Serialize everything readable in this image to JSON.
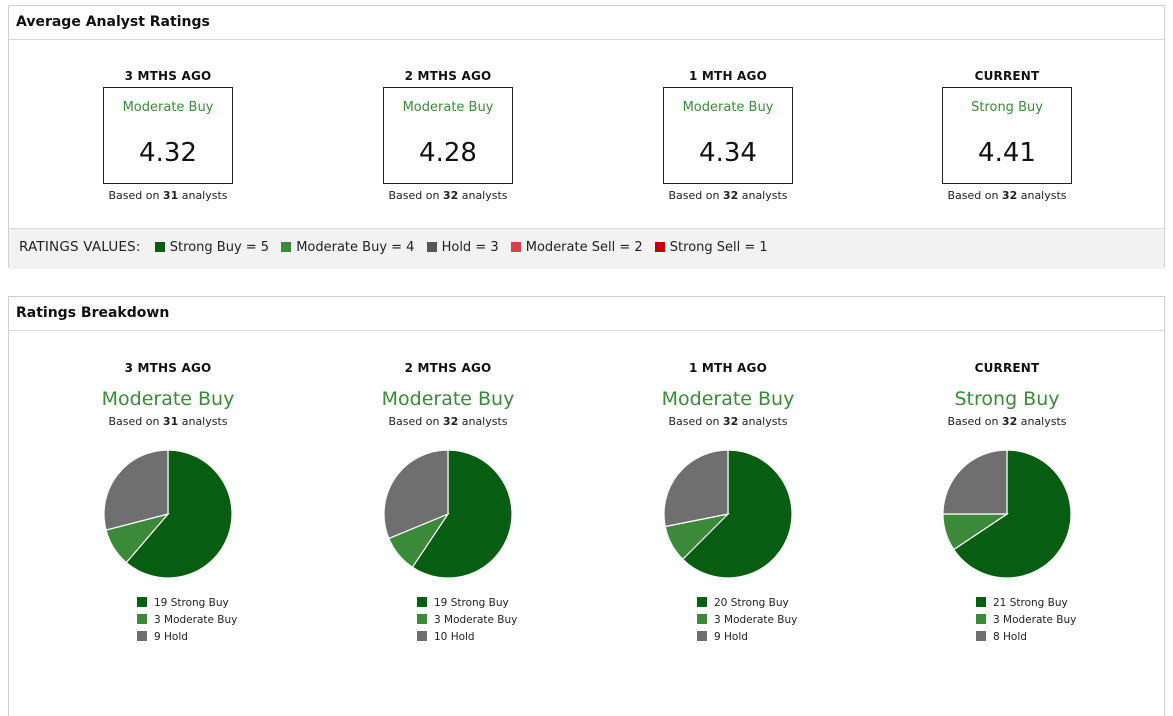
{
  "colors": {
    "strong_buy": "#075e12",
    "moderate_buy": "#3a8a3a",
    "hold": "#6f6f6f",
    "moderate_sell": "#d34545",
    "strong_sell": "#c00000"
  },
  "avg_panel": {
    "title": "Average Analyst Ratings",
    "periods": [
      {
        "label": "3 MTHS AGO",
        "rating": "Moderate Buy",
        "value": "4.32",
        "based_prefix": "Based on ",
        "analysts": "31",
        "based_suffix": " analysts"
      },
      {
        "label": "2 MTHS AGO",
        "rating": "Moderate Buy",
        "value": "4.28",
        "based_prefix": "Based on ",
        "analysts": "32",
        "based_suffix": " analysts"
      },
      {
        "label": "1 MTH AGO",
        "rating": "Moderate Buy",
        "value": "4.34",
        "based_prefix": "Based on ",
        "analysts": "32",
        "based_suffix": " analysts"
      },
      {
        "label": "CURRENT",
        "rating": "Strong Buy",
        "value": "4.41",
        "based_prefix": "Based on ",
        "analysts": "32",
        "based_suffix": " analysts"
      }
    ],
    "ratings_values": {
      "title": "RATINGS VALUES:",
      "items": [
        {
          "label": "Strong Buy = 5",
          "color": "#075e12"
        },
        {
          "label": "Moderate Buy = 4",
          "color": "#3a8a3a"
        },
        {
          "label": "Hold = 3",
          "color": "#555555"
        },
        {
          "label": "Moderate Sell = 2",
          "color": "#d34545"
        },
        {
          "label": "Strong Sell = 1",
          "color": "#c00000"
        }
      ]
    }
  },
  "breakdown_panel": {
    "title": "Ratings Breakdown",
    "periods": [
      {
        "label": "3 MTHS AGO",
        "rating": "Moderate Buy",
        "based_prefix": "Based on ",
        "analysts": "31",
        "based_suffix": " analysts",
        "legend": [
          "19 Strong Buy",
          "3 Moderate Buy",
          "9 Hold"
        ]
      },
      {
        "label": "2 MTHS AGO",
        "rating": "Moderate Buy",
        "based_prefix": "Based on ",
        "analysts": "32",
        "based_suffix": " analysts",
        "legend": [
          "19 Strong Buy",
          "3 Moderate Buy",
          "10 Hold"
        ]
      },
      {
        "label": "1 MTH AGO",
        "rating": "Moderate Buy",
        "based_prefix": "Based on ",
        "analysts": "32",
        "based_suffix": " analysts",
        "legend": [
          "20 Strong Buy",
          "3 Moderate Buy",
          "9 Hold"
        ]
      },
      {
        "label": "CURRENT",
        "rating": "Strong Buy",
        "based_prefix": "Based on ",
        "analysts": "32",
        "based_suffix": " analysts",
        "legend": [
          "21 Strong Buy",
          "3 Moderate Buy",
          "8 Hold"
        ]
      }
    ]
  },
  "chart_data": [
    {
      "type": "pie",
      "title": "3 MTHS AGO",
      "categories": [
        "Strong Buy",
        "Moderate Buy",
        "Hold"
      ],
      "values": [
        19,
        3,
        9
      ]
    },
    {
      "type": "pie",
      "title": "2 MTHS AGO",
      "categories": [
        "Strong Buy",
        "Moderate Buy",
        "Hold"
      ],
      "values": [
        19,
        3,
        10
      ]
    },
    {
      "type": "pie",
      "title": "1 MTH AGO",
      "categories": [
        "Strong Buy",
        "Moderate Buy",
        "Hold"
      ],
      "values": [
        20,
        3,
        9
      ]
    },
    {
      "type": "pie",
      "title": "CURRENT",
      "categories": [
        "Strong Buy",
        "Moderate Buy",
        "Hold"
      ],
      "values": [
        21,
        3,
        8
      ]
    }
  ]
}
